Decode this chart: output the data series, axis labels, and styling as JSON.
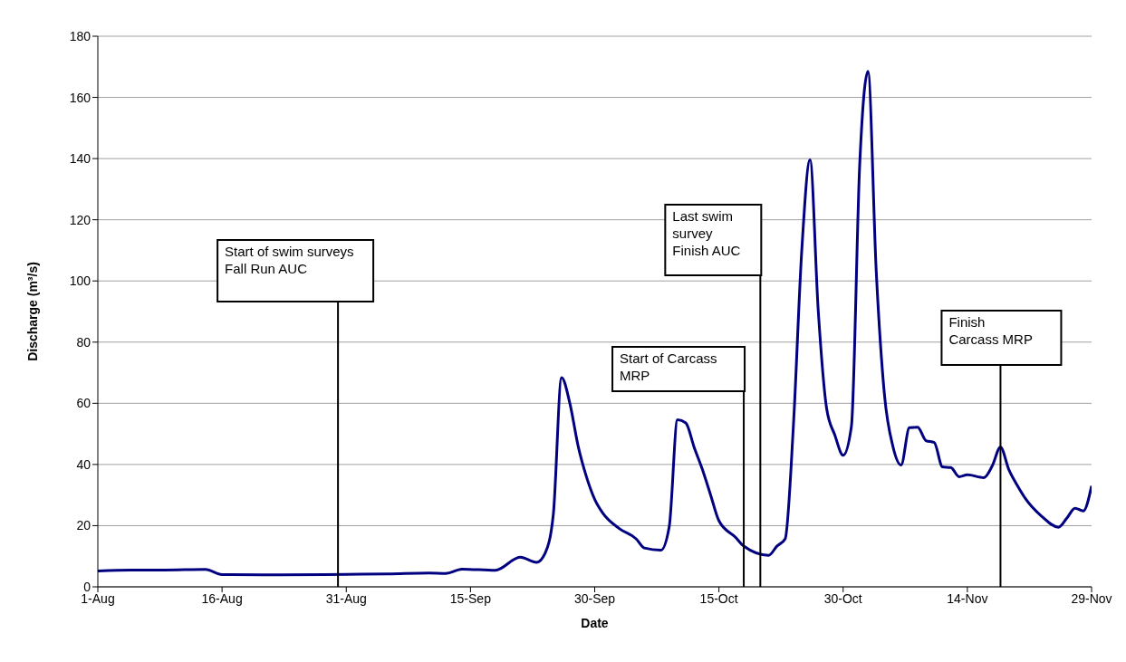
{
  "chart_data": {
    "type": "line",
    "xlabel": "Date",
    "ylabel": "Discharge (m³/s)",
    "x": [
      "--08-01",
      "--08-05",
      "--08-09",
      "--08-14",
      "--08-16",
      "--08-23",
      "--08-31",
      "--09-05",
      "--09-10",
      "--09-12",
      "--09-14",
      "--09-18",
      "--09-21",
      "--09-23",
      "--09-24",
      "--09-25",
      "--09-26",
      "--09-27",
      "--09-28",
      "--09-29",
      "--09-30",
      "--10-01",
      "--10-03",
      "--10-05",
      "--10-06",
      "--10-08",
      "--10-09",
      "--10-10",
      "--10-11",
      "--10-12",
      "--10-13",
      "--10-14",
      "--10-15",
      "--10-17",
      "--10-18",
      "--10-21",
      "--10-22",
      "--10-23",
      "--10-24",
      "--10-25",
      "--10-26",
      "--10-27",
      "--10-28",
      "--10-29",
      "--10-30",
      "--10-31",
      "--11-01",
      "--11-02",
      "--11-03",
      "--11-04",
      "--11-05",
      "--11-06",
      "--11-07",
      "--11-08",
      "--11-09",
      "--11-10",
      "--11-11",
      "--11-12",
      "--11-13",
      "--11-14",
      "--11-16",
      "--11-17",
      "--11-18",
      "--11-19",
      "--11-20",
      "--11-21",
      "--11-23",
      "--11-25",
      "--11-26",
      "--11-27",
      "--11-28",
      "--11-29"
    ],
    "series": [
      {
        "color": "#000080",
        "values": [
          5.2,
          5.5,
          5.5,
          5.7,
          4.0,
          3.9,
          4.1,
          4.2,
          4.5,
          4.4,
          5.8,
          5.4,
          9.7,
          8.0,
          10.9,
          23.6,
          68.4,
          60,
          46,
          36,
          28.6,
          24,
          19,
          15.7,
          12.7,
          12,
          19.7,
          54.6,
          53.6,
          45.7,
          38.4,
          30,
          21.6,
          16.2,
          13.3,
          10.3,
          13.3,
          15.7,
          53,
          109.8,
          139.6,
          90,
          58.4,
          49.6,
          43,
          52.5,
          138,
          168.5,
          103,
          62.5,
          46,
          39.8,
          52,
          52.2,
          47.8,
          47.2,
          39.2,
          39,
          36,
          36.6,
          35.7,
          39.5,
          45.7,
          38.4,
          33.3,
          28.9,
          23,
          19.5,
          22.4,
          25.7,
          24.8,
          33
        ]
      }
    ],
    "xlim": [
      "--08-01",
      "--11-29"
    ],
    "xticks": [
      {
        "value": "--08-01",
        "label": "1-Aug"
      },
      {
        "value": "--08-16",
        "label": "16-Aug"
      },
      {
        "value": "--08-31",
        "label": "31-Aug"
      },
      {
        "value": "--09-15",
        "label": "15-Sep"
      },
      {
        "value": "--09-30",
        "label": "30-Sep"
      },
      {
        "value": "--10-15",
        "label": "15-Oct"
      },
      {
        "value": "--10-30",
        "label": "30-Oct"
      },
      {
        "value": "--11-14",
        "label": "14-Nov"
      },
      {
        "value": "--11-29",
        "label": "29-Nov"
      }
    ],
    "ylim": [
      0,
      180
    ],
    "yticks": [
      0,
      20,
      40,
      60,
      80,
      100,
      120,
      140,
      160,
      180
    ],
    "grid": "y",
    "ref_lines": [
      {
        "axis": "x",
        "value": "--08-30",
        "label": "Start of swim surveys\nFall Run AUC",
        "color": "#000000"
      },
      {
        "axis": "x",
        "value": "--10-18",
        "label": "Start of Carcass\nMRP",
        "color": "#000000"
      },
      {
        "axis": "x",
        "value": "--10-20",
        "label": "Last swim\nsurvey\nFinish AUC",
        "color": "#000000"
      },
      {
        "axis": "x",
        "value": "--11-18",
        "label": "Finish\nCarcass MRP",
        "color": "#000000"
      }
    ]
  }
}
